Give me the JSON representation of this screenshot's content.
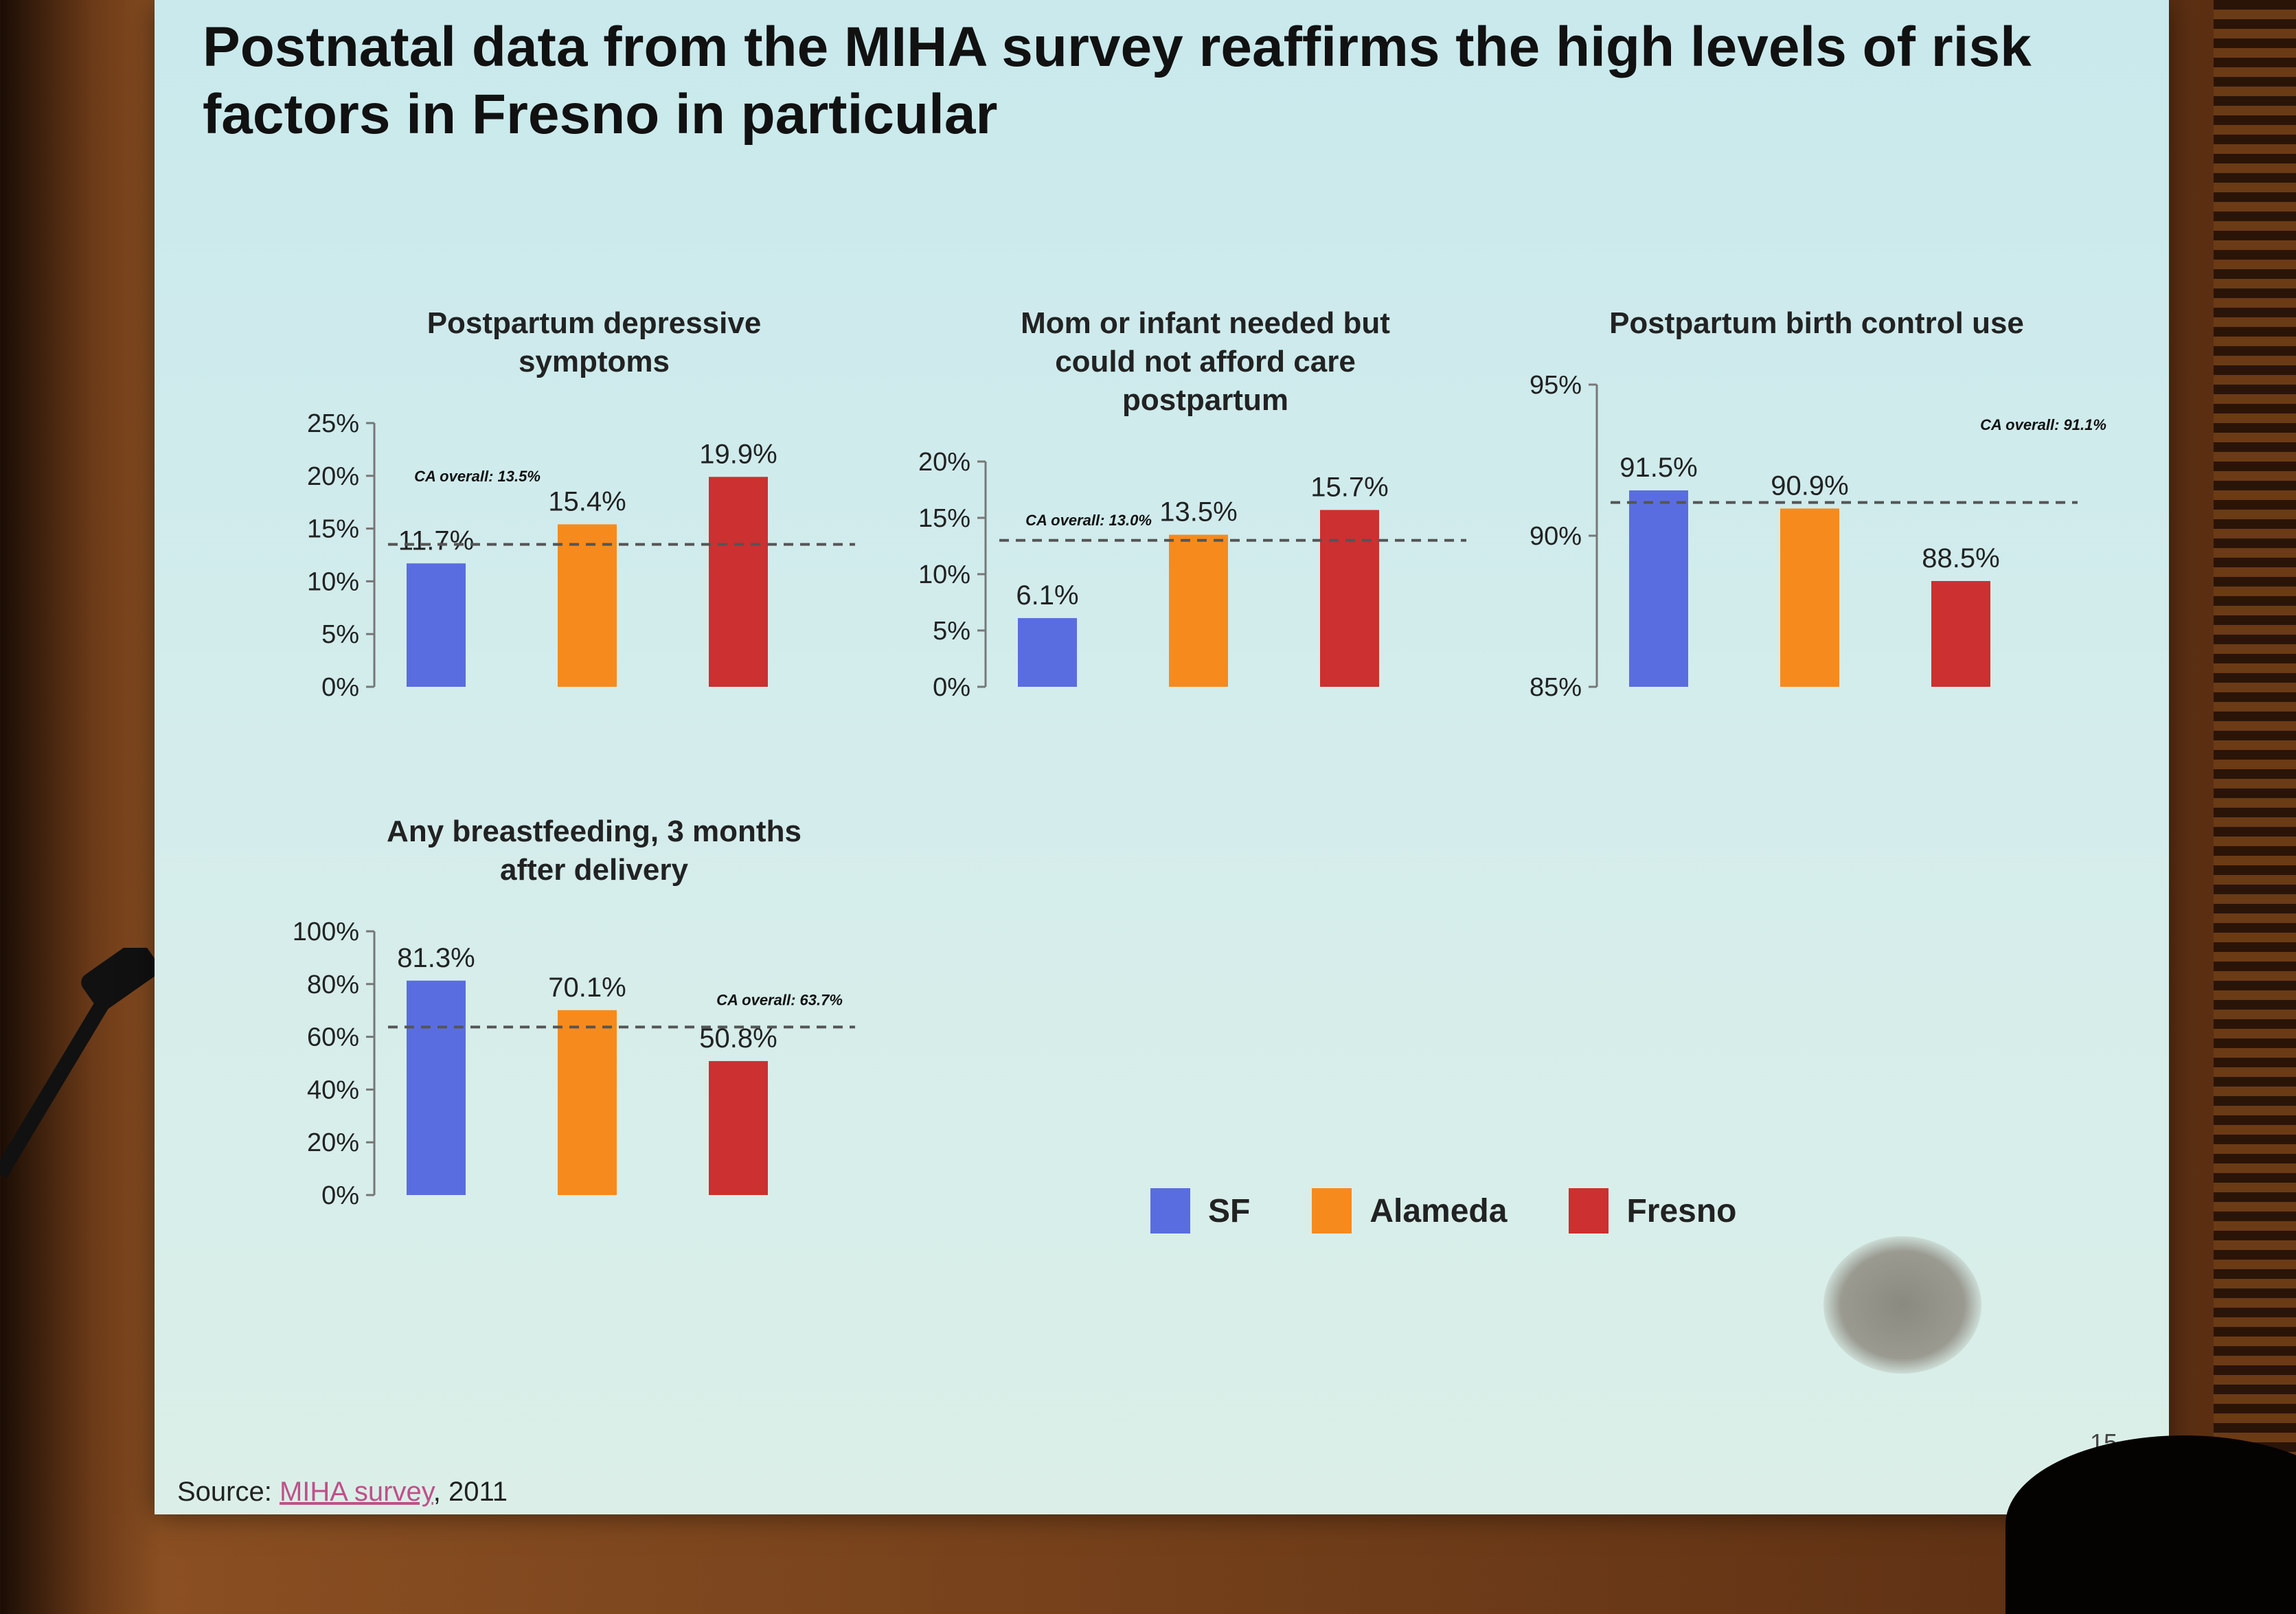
{
  "title": "Postnatal data from the MIHA survey reaffirms the high levels of risk factors in Fresno in particular",
  "legend": [
    {
      "name": "SF",
      "color": "#5a6de0"
    },
    {
      "name": "Alameda",
      "color": "#f78a1c"
    },
    {
      "name": "Fresno",
      "color": "#cc3030"
    }
  ],
  "source": {
    "prefix": "Source: ",
    "link": "MIHA survey",
    "suffix": ", 2011"
  },
  "page_number": "15",
  "chart_data": [
    {
      "type": "bar",
      "title_lines": [
        "Postpartum depressive",
        "symptoms"
      ],
      "categories": [
        "SF",
        "Alameda",
        "Fresno"
      ],
      "values": [
        11.7,
        15.4,
        19.9
      ],
      "labels": [
        "11.7%",
        "15.4%",
        "19.9%"
      ],
      "ylim": [
        0,
        25
      ],
      "yticks": [
        0,
        5,
        10,
        15,
        20,
        25
      ],
      "ytick_labels": [
        "0%",
        "5%",
        "10%",
        "15%",
        "20%",
        "25%"
      ],
      "ca_overall": 13.5,
      "ca_label": "CA overall: 13.5%"
    },
    {
      "type": "bar",
      "title_lines": [
        "Mom or infant needed but",
        "could not afford care",
        "postpartum"
      ],
      "categories": [
        "SF",
        "Alameda",
        "Fresno"
      ],
      "values": [
        6.1,
        13.5,
        15.7
      ],
      "labels": [
        "6.1%",
        "13.5%",
        "15.7%"
      ],
      "ylim": [
        0,
        20
      ],
      "yticks": [
        0,
        5,
        10,
        15,
        20
      ],
      "ytick_labels": [
        "0%",
        "5%",
        "10%",
        "15%",
        "20%"
      ],
      "ca_overall": 13.0,
      "ca_label": "CA overall: 13.0%"
    },
    {
      "type": "bar",
      "title_lines": [
        "Postpartum birth control use"
      ],
      "categories": [
        "SF",
        "Alameda",
        "Fresno"
      ],
      "values": [
        91.5,
        90.9,
        88.5
      ],
      "labels": [
        "91.5%",
        "90.9%",
        "88.5%"
      ],
      "ylim": [
        85,
        95
      ],
      "yticks": [
        85,
        90,
        95
      ],
      "ytick_labels": [
        "85%",
        "90%",
        "95%"
      ],
      "ca_overall": 91.1,
      "ca_label": "CA overall: 91.1%"
    },
    {
      "type": "bar",
      "title_lines": [
        "Any breastfeeding, 3 months",
        "after delivery"
      ],
      "categories": [
        "SF",
        "Alameda",
        "Fresno"
      ],
      "values": [
        81.3,
        70.1,
        50.8
      ],
      "labels": [
        "81.3%",
        "70.1%",
        "50.8%"
      ],
      "ylim": [
        0,
        100
      ],
      "yticks": [
        0,
        20,
        40,
        60,
        80,
        100
      ],
      "ytick_labels": [
        "0%",
        "20%",
        "40%",
        "60%",
        "80%",
        "100%"
      ],
      "ca_overall": 63.7,
      "ca_label": "CA overall: 63.7%"
    }
  ]
}
